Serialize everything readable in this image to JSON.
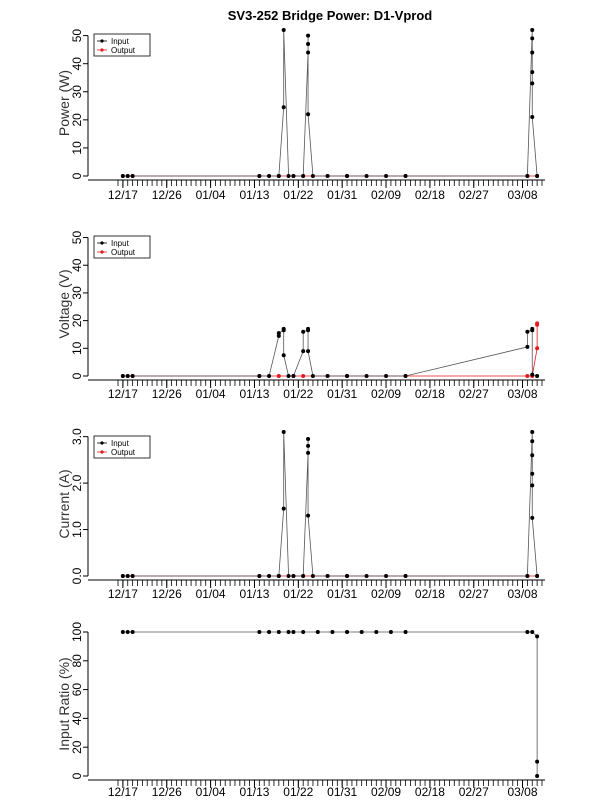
{
  "figure_title": "SV3-252 Bridge Power: D1-Vprod",
  "x_axis": {
    "start": "2023-12-16",
    "end": "2024-03-12",
    "tick_dates": [
      "2023-12-17",
      "2023-12-26",
      "2024-01-04",
      "2024-01-13",
      "2024-01-22",
      "2024-01-31",
      "2024-02-09",
      "2024-02-18",
      "2024-02-27",
      "2024-03-08"
    ],
    "tick_labels": [
      "12/17",
      "12/26",
      "01/04",
      "01/13",
      "01/22",
      "01/31",
      "02/09",
      "02/18",
      "02/27",
      "03/08"
    ]
  },
  "legend": {
    "input": "Input",
    "output": "Output"
  },
  "colors": {
    "input": "#000000",
    "output": "#e41a1c",
    "line": "#555555",
    "frame": "#000000"
  },
  "chart_data": [
    {
      "type": "line",
      "ylabel": "Power (W)",
      "ylim": [
        0,
        52
      ],
      "yticks": [
        0,
        10,
        20,
        30,
        40,
        50
      ],
      "legend_position": "top-left",
      "series": [
        {
          "name": "Input",
          "points": [
            [
              "2023-12-17",
              0
            ],
            [
              "2023-12-18",
              0
            ],
            [
              "2023-12-19",
              0
            ],
            [
              "2024-01-14",
              0
            ],
            [
              "2024-01-16",
              0
            ],
            [
              "2024-01-18",
              0
            ],
            [
              "2024-01-19",
              24.5
            ],
            [
              "2024-01-19",
              52
            ],
            [
              "2024-01-20",
              0
            ],
            [
              "2024-01-21",
              0
            ],
            [
              "2024-01-23",
              0
            ],
            [
              "2024-01-24",
              44
            ],
            [
              "2024-01-24",
              47
            ],
            [
              "2024-01-24",
              50
            ],
            [
              "2024-01-24",
              22
            ],
            [
              "2024-01-25",
              0
            ],
            [
              "2024-01-28",
              0
            ],
            [
              "2024-02-01",
              0
            ],
            [
              "2024-02-05",
              0
            ],
            [
              "2024-02-09",
              0
            ],
            [
              "2024-02-13",
              0
            ],
            [
              "2024-03-09",
              0
            ],
            [
              "2024-03-10",
              52
            ],
            [
              "2024-03-10",
              49
            ],
            [
              "2024-03-10",
              44
            ],
            [
              "2024-03-10",
              37
            ],
            [
              "2024-03-10",
              33
            ],
            [
              "2024-03-10",
              21
            ],
            [
              "2024-03-11",
              0
            ]
          ]
        },
        {
          "name": "Output",
          "points": [
            [
              "2023-12-17",
              0
            ],
            [
              "2023-12-18",
              0
            ],
            [
              "2023-12-19",
              0
            ],
            [
              "2024-01-14",
              0
            ],
            [
              "2024-01-18",
              0
            ],
            [
              "2024-01-21",
              0
            ],
            [
              "2024-01-23",
              0
            ],
            [
              "2024-02-01",
              0
            ],
            [
              "2024-02-13",
              0
            ],
            [
              "2024-03-09",
              0
            ],
            [
              "2024-03-11",
              0
            ]
          ]
        }
      ]
    },
    {
      "type": "line",
      "ylabel": "Voltage (V)",
      "ylim": [
        0,
        52
      ],
      "yticks": [
        0,
        10,
        20,
        30,
        40,
        50
      ],
      "legend_position": "top-left",
      "series": [
        {
          "name": "Input",
          "points": [
            [
              "2023-12-17",
              0
            ],
            [
              "2023-12-18",
              0
            ],
            [
              "2023-12-19",
              0
            ],
            [
              "2024-01-14",
              0
            ],
            [
              "2024-01-16",
              0
            ],
            [
              "2024-01-18",
              14.5
            ],
            [
              "2024-01-18",
              15.5
            ],
            [
              "2024-01-19",
              16.5
            ],
            [
              "2024-01-19",
              17
            ],
            [
              "2024-01-19",
              7.5
            ],
            [
              "2024-01-20",
              0
            ],
            [
              "2024-01-21",
              0
            ],
            [
              "2024-01-23",
              9
            ],
            [
              "2024-01-23",
              16
            ],
            [
              "2024-01-24",
              16.5
            ],
            [
              "2024-01-24",
              17
            ],
            [
              "2024-01-24",
              9
            ],
            [
              "2024-01-25",
              0
            ],
            [
              "2024-01-28",
              0
            ],
            [
              "2024-02-01",
              0
            ],
            [
              "2024-02-05",
              0
            ],
            [
              "2024-02-09",
              0
            ],
            [
              "2024-02-13",
              0
            ],
            [
              "2024-03-09",
              10.5
            ],
            [
              "2024-03-09",
              16
            ],
            [
              "2024-03-10",
              16.5
            ],
            [
              "2024-03-10",
              17
            ],
            [
              "2024-03-10",
              0.5
            ],
            [
              "2024-03-11",
              0
            ]
          ]
        },
        {
          "name": "Output",
          "points": [
            [
              "2023-12-17",
              0
            ],
            [
              "2023-12-18",
              0
            ],
            [
              "2023-12-19",
              0
            ],
            [
              "2024-01-14",
              0
            ],
            [
              "2024-01-18",
              0
            ],
            [
              "2024-01-21",
              0
            ],
            [
              "2024-01-23",
              0
            ],
            [
              "2024-02-01",
              0
            ],
            [
              "2024-02-13",
              0
            ],
            [
              "2024-03-09",
              0
            ],
            [
              "2024-03-10",
              0
            ],
            [
              "2024-03-11",
              10
            ],
            [
              "2024-03-11",
              18.5
            ],
            [
              "2024-03-11",
              19
            ]
          ]
        }
      ]
    },
    {
      "type": "line",
      "ylabel": "Current (A)",
      "ylim": [
        0,
        3.1
      ],
      "yticks": [
        0.0,
        1.0,
        2.0,
        3.0
      ],
      "ytick_labels": [
        "0.0",
        "1.0",
        "2.0",
        "3.0"
      ],
      "legend_position": "top-left",
      "series": [
        {
          "name": "Input",
          "points": [
            [
              "2023-12-17",
              0
            ],
            [
              "2023-12-18",
              0
            ],
            [
              "2023-12-19",
              0
            ],
            [
              "2024-01-14",
              0
            ],
            [
              "2024-01-16",
              0
            ],
            [
              "2024-01-18",
              0
            ],
            [
              "2024-01-19",
              1.45
            ],
            [
              "2024-01-19",
              3.1
            ],
            [
              "2024-01-20",
              0
            ],
            [
              "2024-01-21",
              0
            ],
            [
              "2024-01-23",
              0
            ],
            [
              "2024-01-24",
              2.65
            ],
            [
              "2024-01-24",
              2.8
            ],
            [
              "2024-01-24",
              2.95
            ],
            [
              "2024-01-24",
              1.3
            ],
            [
              "2024-01-25",
              0
            ],
            [
              "2024-01-28",
              0
            ],
            [
              "2024-02-01",
              0
            ],
            [
              "2024-02-05",
              0
            ],
            [
              "2024-02-09",
              0
            ],
            [
              "2024-02-13",
              0
            ],
            [
              "2024-03-09",
              0
            ],
            [
              "2024-03-10",
              3.1
            ],
            [
              "2024-03-10",
              2.9
            ],
            [
              "2024-03-10",
              2.6
            ],
            [
              "2024-03-10",
              2.2
            ],
            [
              "2024-03-10",
              1.95
            ],
            [
              "2024-03-10",
              1.25
            ],
            [
              "2024-03-11",
              0
            ]
          ]
        },
        {
          "name": "Output",
          "points": [
            [
              "2023-12-17",
              0
            ],
            [
              "2023-12-18",
              0
            ],
            [
              "2023-12-19",
              0
            ],
            [
              "2024-01-14",
              0
            ],
            [
              "2024-01-18",
              0
            ],
            [
              "2024-01-21",
              0
            ],
            [
              "2024-01-23",
              0
            ],
            [
              "2024-02-01",
              0
            ],
            [
              "2024-02-13",
              0
            ],
            [
              "2024-03-09",
              0
            ],
            [
              "2024-03-11",
              0
            ]
          ]
        }
      ]
    },
    {
      "type": "line",
      "ylabel": "Input Ratio (%)",
      "ylim": [
        0,
        100
      ],
      "yticks": [
        0,
        20,
        40,
        60,
        80,
        100
      ],
      "series": [
        {
          "name": "",
          "points": [
            [
              "2023-12-17",
              100
            ],
            [
              "2023-12-18",
              100
            ],
            [
              "2023-12-19",
              100
            ],
            [
              "2024-01-14",
              100
            ],
            [
              "2024-01-16",
              100
            ],
            [
              "2024-01-18",
              100
            ],
            [
              "2024-01-20",
              100
            ],
            [
              "2024-01-21",
              100
            ],
            [
              "2024-01-23",
              100
            ],
            [
              "2024-01-26",
              100
            ],
            [
              "2024-01-29",
              100
            ],
            [
              "2024-02-01",
              100
            ],
            [
              "2024-02-04",
              100
            ],
            [
              "2024-02-07",
              100
            ],
            [
              "2024-02-10",
              100
            ],
            [
              "2024-02-13",
              100
            ],
            [
              "2024-03-09",
              100
            ],
            [
              "2024-03-10",
              100
            ],
            [
              "2024-03-11",
              97
            ],
            [
              "2024-03-11",
              10
            ],
            [
              "2024-03-11",
              0
            ]
          ]
        }
      ]
    }
  ]
}
